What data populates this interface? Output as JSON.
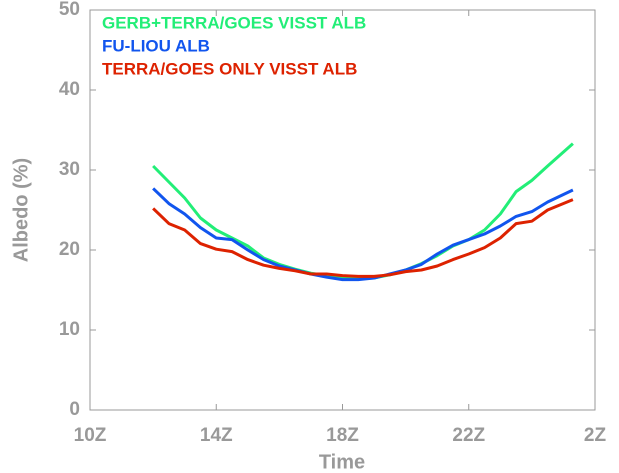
{
  "chart_data": {
    "type": "line",
    "xlabel": "Time",
    "ylabel": "Albedo (%)",
    "x": [
      12,
      12.5,
      13,
      13.5,
      14,
      14.5,
      15,
      15.5,
      16,
      16.5,
      17,
      17.5,
      18,
      18.5,
      19,
      19.5,
      20,
      20.5,
      21,
      21.5,
      22,
      22.5,
      23,
      23.5,
      24,
      24.5,
      25.3
    ],
    "series": [
      {
        "name": "GERB+TERRA/GOES VISST ALB",
        "color": "#22ee77",
        "values": [
          30.5,
          28.5,
          26.5,
          24,
          22.5,
          21.5,
          20.5,
          19,
          18.2,
          17.6,
          17.1,
          16.8,
          16.5,
          16.4,
          16.5,
          16.9,
          17.5,
          18.3,
          19.3,
          20.5,
          21.3,
          22.5,
          24.5,
          27.3,
          28.7,
          30.5,
          33.3
        ]
      },
      {
        "name": "FU-LIOU ALB",
        "color": "#1155ee",
        "values": [
          27.7,
          25.8,
          24.5,
          22.8,
          21.5,
          21.3,
          20,
          18.8,
          18,
          17.5,
          17,
          16.6,
          16.3,
          16.3,
          16.5,
          17,
          17.5,
          18.2,
          19.5,
          20.6,
          21.3,
          22,
          23,
          24.2,
          24.8,
          26,
          27.5
        ]
      },
      {
        "name": "TERRA/GOES ONLY VISST ALB",
        "color": "#dd2200",
        "values": [
          25.2,
          23.3,
          22.5,
          20.8,
          20.1,
          19.8,
          18.8,
          18.1,
          17.7,
          17.4,
          17,
          17,
          16.8,
          16.7,
          16.7,
          16.9,
          17.3,
          17.5,
          18,
          18.8,
          19.5,
          20.3,
          21.5,
          23.3,
          23.6,
          25,
          26.3
        ]
      }
    ],
    "xlim": [
      10,
      26
    ],
    "xticks": [
      {
        "value": 10,
        "label": "10Z"
      },
      {
        "value": 14,
        "label": "14Z"
      },
      {
        "value": 18,
        "label": "18Z"
      },
      {
        "value": 22,
        "label": "22Z"
      },
      {
        "value": 26,
        "label": "2Z"
      }
    ],
    "ylim": [
      0,
      50
    ],
    "yticks": [
      0,
      10,
      20,
      30,
      40,
      50
    ],
    "legend": "upper left"
  }
}
